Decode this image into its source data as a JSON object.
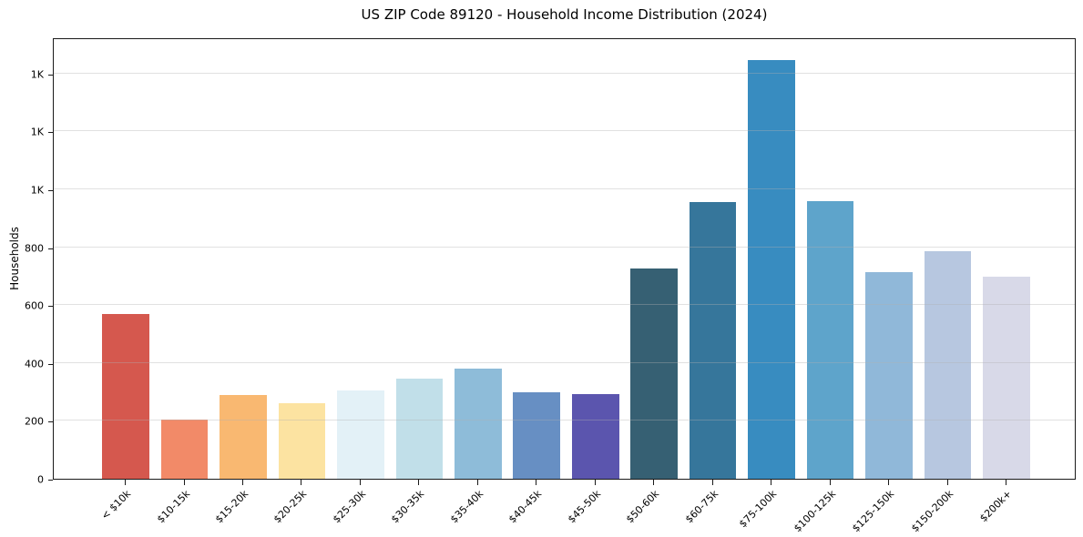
{
  "chart_data": {
    "type": "bar",
    "title": "US ZIP Code 89120 - Household Income Distribution (2024)",
    "xlabel": "",
    "ylabel": "Households",
    "categories": [
      "< $10k",
      "$10-15k",
      "$15-20k",
      "$20-25k",
      "$25-30k",
      "$30-35k",
      "$35-40k",
      "$40-45k",
      "$45-50k",
      "$50-60k",
      "$60-75k",
      "$75-100k",
      "$100-125k",
      "$125-150k",
      "$150-200k",
      "$200k+"
    ],
    "values": [
      570,
      206,
      288,
      262,
      305,
      345,
      382,
      298,
      292,
      727,
      955,
      1448,
      958,
      713,
      785,
      698
    ],
    "bar_colors": [
      "#d5584e",
      "#f28a68",
      "#f9b871",
      "#fce3a1",
      "#e3f1f7",
      "#c1dfe9",
      "#8ebcd9",
      "#678fc3",
      "#5b55ae",
      "#366073",
      "#36769b",
      "#388cc0",
      "#5ea4cb",
      "#90b8d9",
      "#b7c7e0",
      "#d8d9e8"
    ],
    "ylim": [
      0,
      1525
    ],
    "yticks": [
      {
        "value": 0,
        "label": "0"
      },
      {
        "value": 200,
        "label": "200"
      },
      {
        "value": 400,
        "label": "400"
      },
      {
        "value": 600,
        "label": "600"
      },
      {
        "value": 800,
        "label": "800"
      },
      {
        "value": 1000,
        "label": "1K"
      },
      {
        "value": 1200,
        "label": "1K"
      },
      {
        "value": 1400,
        "label": "1K"
      }
    ],
    "grid": "horizontal",
    "legend_position": "none",
    "colors": {
      "grid": "#b0b0b0",
      "spine": "#1a1a1a",
      "text": "#000000",
      "background": "#ffffff"
    }
  }
}
